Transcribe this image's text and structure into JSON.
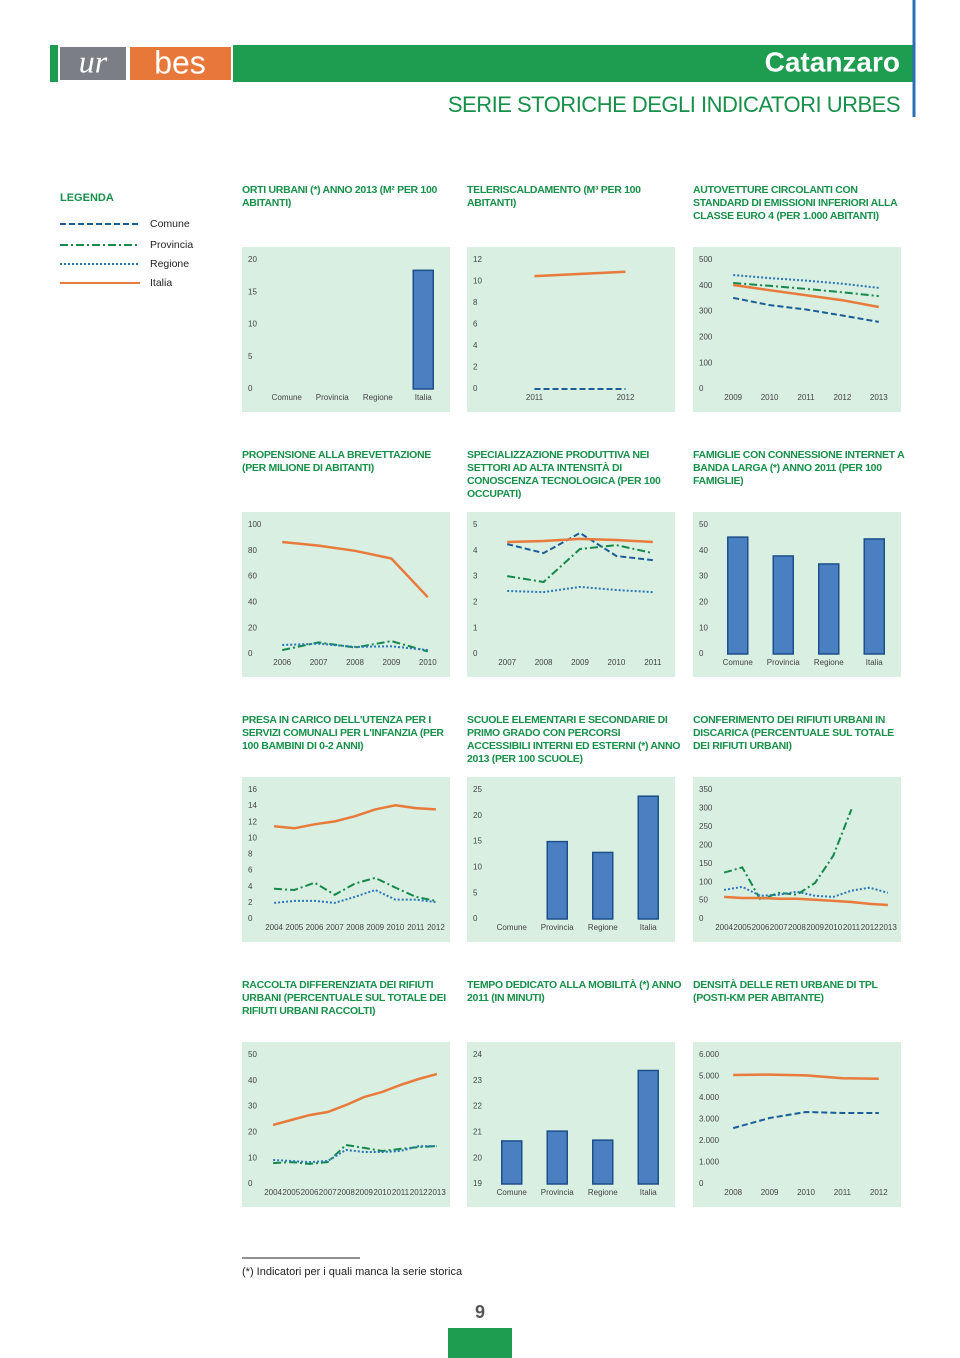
{
  "header": {
    "logo": [
      "ur",
      "bes"
    ],
    "city": "Catanzaro",
    "subtitle": "SERIE STORICHE DEGLI INDICATORI URBES"
  },
  "legend": {
    "title": "LEGENDA",
    "items": [
      {
        "name": "Comune",
        "color": "#1a5d99",
        "dash": "dashed"
      },
      {
        "name": "Provincia",
        "color": "#14894a",
        "dash": "dash-dot"
      },
      {
        "name": "Regione",
        "color": "#2a77b8",
        "dash": "dotted"
      },
      {
        "name": "Italia",
        "color": "#e87a3b",
        "dash": "solid"
      }
    ]
  },
  "chart_data": [
    {
      "type": "bar",
      "title": "ORTI URBANI (*) ANNO 2013 (M² PER 100 ABITANTI)",
      "categories": [
        "Comune",
        "Provincia",
        "Regione",
        "Italia"
      ],
      "values": [
        null,
        null,
        null,
        18.4
      ],
      "color": "#4a80c2",
      "ylim": [
        0,
        20
      ],
      "yticks": [
        0,
        5,
        10,
        15,
        20
      ]
    },
    {
      "type": "line",
      "title": "TELERISCALDAMENTO (M³ PER 100 ABITANTI)",
      "categories": [
        "2011",
        "2012"
      ],
      "series": [
        {
          "name": "Comune",
          "values": [
            0,
            0
          ]
        },
        {
          "name": "Italia",
          "values": [
            10.5,
            10.9
          ]
        }
      ],
      "ylim": [
        0,
        12
      ],
      "yticks": [
        0,
        2,
        4,
        6,
        8,
        10,
        12
      ]
    },
    {
      "type": "line",
      "title": "AUTOVETTURE CIRCOLANTI CON STANDARD DI EMISSIONI INFERIORI ALLA CLASSE EURO 4 (PER 1.000 ABITANTI)",
      "categories": [
        "2009",
        "2010",
        "2011",
        "2012",
        "2013"
      ],
      "series": [
        {
          "name": "Comune",
          "values": [
            353,
            325,
            308,
            285,
            260
          ]
        },
        {
          "name": "Provincia",
          "values": [
            411,
            400,
            388,
            375,
            360
          ]
        },
        {
          "name": "Regione",
          "values": [
            442,
            430,
            420,
            408,
            392
          ]
        },
        {
          "name": "Italia",
          "values": [
            403,
            383,
            363,
            344,
            318
          ]
        }
      ],
      "ylim": [
        0,
        500
      ],
      "yticks": [
        0,
        100,
        200,
        300,
        400,
        500
      ]
    },
    {
      "type": "line",
      "title": "PROPENSIONE ALLA BREVETTAZIONE (PER MILIONE DI ABITANTI)",
      "categories": [
        "2006",
        "2007",
        "2008",
        "2009",
        "2010"
      ],
      "series": [
        {
          "name": "Provincia",
          "values": [
            3,
            9,
            5,
            10,
            2
          ]
        },
        {
          "name": "Regione",
          "values": [
            7,
            8,
            5.5,
            6,
            3
          ]
        },
        {
          "name": "Italia",
          "values": [
            86.8,
            84,
            80,
            74,
            44
          ]
        }
      ],
      "ylim": [
        0,
        100
      ],
      "yticks": [
        0,
        20,
        40,
        60,
        80,
        100
      ]
    },
    {
      "type": "line",
      "title": "SPECIALIZZAZIONE PRODUTTIVA NEI SETTORI AD ALTA INTENSITÀ DI CONOSCENZA TECNOLOGICA (PER 100 OCCUPATI)",
      "categories": [
        "2007",
        "2008",
        "2009",
        "2010",
        "2011"
      ],
      "series": [
        {
          "name": "Comune",
          "values": [
            4.26,
            3.91,
            4.69,
            3.8,
            3.64
          ]
        },
        {
          "name": "Provincia",
          "values": [
            3.02,
            2.79,
            4.07,
            4.22,
            3.91
          ]
        },
        {
          "name": "Regione",
          "values": [
            2.44,
            2.4,
            2.6,
            2.48,
            2.4
          ]
        },
        {
          "name": "Italia",
          "values": [
            4.34,
            4.38,
            4.46,
            4.42,
            4.34
          ]
        }
      ],
      "ylim": [
        0,
        5
      ],
      "yticks": [
        0,
        1,
        2,
        3,
        4,
        5
      ]
    },
    {
      "type": "bar",
      "title": "FAMIGLIE CON CONNESSIONE INTERNET A BANDA LARGA (*) ANNO 2011 (PER 100 FAMIGLIE)",
      "categories": [
        "Comune",
        "Provincia",
        "Regione",
        "Italia"
      ],
      "values": [
        45.3,
        38,
        34.9,
        44.6
      ],
      "color": "#4a80c2",
      "ylim": [
        0,
        50
      ],
      "yticks": [
        0,
        10,
        20,
        30,
        40,
        50
      ]
    },
    {
      "type": "line",
      "title": "PRESA IN CARICO DELL'UTENZA PER I SERVIZI COMUNALI PER L'INFANZIA (PER 100 BAMBINI DI 0-2 ANNI)",
      "categories": [
        "2004",
        "2005",
        "2006",
        "2007",
        "2008",
        "2009",
        "2010",
        "2011",
        "2012"
      ],
      "series": [
        {
          "name": "Provincia",
          "values": [
            3.75,
            3.6,
            4.5,
            3,
            4.4,
            5.1,
            3.9,
            2.75,
            2.25
          ]
        },
        {
          "name": "Regione",
          "values": [
            2,
            2.25,
            2.25,
            2,
            2.75,
            3.6,
            2.4,
            2.4,
            2.1
          ]
        },
        {
          "name": "Italia",
          "values": [
            11.5,
            11.25,
            11.75,
            12.1,
            12.75,
            13.6,
            14.1,
            13.75,
            13.6
          ]
        }
      ],
      "ylim": [
        0,
        16
      ],
      "yticks": [
        0,
        2,
        4,
        6,
        8,
        10,
        12,
        14,
        16
      ]
    },
    {
      "type": "bar",
      "title": "SCUOLE ELEMENTARI E SECONDARIE DI PRIMO GRADO CON PERCORSI ACCESSIBILI INTERNI ED ESTERNI (*) ANNO 2013 (PER 100 SCUOLE)",
      "categories": [
        "Comune",
        "Provincia",
        "Regione",
        "Italia"
      ],
      "values": [
        null,
        15,
        12.9,
        23.8
      ],
      "color": "#4a80c2",
      "ylim": [
        0,
        25
      ],
      "yticks": [
        0,
        5,
        10,
        15,
        20,
        25
      ]
    },
    {
      "type": "line",
      "title": "CONFERIMENTO DEI RIFIUTI URBANI IN DISCARICA (PERCENTUALE SUL TOTALE DEI RIFIUTI URBANI)",
      "categories": [
        "2004",
        "2005",
        "2006",
        "2007",
        "2008",
        "2009",
        "2010",
        "2011",
        "2012",
        "2013"
      ],
      "series": [
        {
          "name": "Provincia",
          "values": [
            126,
            140,
            52,
            71,
            66,
            98,
            172,
            298,
            null,
            null
          ]
        },
        {
          "name": "Regione",
          "values": [
            79,
            87,
            63,
            66,
            74,
            63,
            60,
            77,
            85,
            71
          ]
        },
        {
          "name": "Italia",
          "values": [
            60,
            57,
            57,
            55,
            55,
            52,
            49,
            46,
            41,
            38
          ]
        }
      ],
      "ylim": [
        0,
        350
      ],
      "yticks": [
        0,
        50,
        100,
        150,
        200,
        250,
        300,
        350
      ]
    },
    {
      "type": "line",
      "title": "RACCOLTA DIFFERENZIATA DEI RIFIUTI URBANI (PERCENTUALE SUL TOTALE DEI RIFIUTI URBANI RACCOLTI)",
      "categories": [
        "2004",
        "2005",
        "2006",
        "2007",
        "2008",
        "2009",
        "2010",
        "2011",
        "2012",
        "2013"
      ],
      "series": [
        {
          "name": "Provincia",
          "values": [
            8.1,
            8.5,
            7.8,
            8.5,
            15.1,
            14,
            12.8,
            13.6,
            14.3,
            14.7
          ]
        },
        {
          "name": "Regione",
          "values": [
            9.3,
            8.9,
            8.5,
            8.9,
            13.2,
            12.4,
            12.4,
            12.8,
            14.7,
            14.7
          ]
        },
        {
          "name": "Italia",
          "values": [
            22.9,
            24.8,
            26.7,
            27.9,
            30.6,
            33.7,
            35.7,
            38.4,
            40.7,
            42.6
          ]
        }
      ],
      "ylim": [
        0,
        50
      ],
      "yticks": [
        0,
        10,
        20,
        30,
        40,
        50
      ]
    },
    {
      "type": "bar",
      "title": "TEMPO DEDICATO ALLA MOBILITÀ (*) ANNO 2011 (IN MINUTI)",
      "categories": [
        "Comune",
        "Provincia",
        "Regione",
        "Italia"
      ],
      "values": [
        20.67,
        21.05,
        20.7,
        23.4
      ],
      "color": "#4a80c2",
      "ylim": [
        19,
        24
      ],
      "yticks": [
        19,
        20,
        21,
        22,
        23,
        24
      ]
    },
    {
      "type": "line",
      "title": "DENSITÀ DELLE RETI URBANE DI TPL (POSTI-KM PER ABITANTE)",
      "categories": [
        "2008",
        "2009",
        "2010",
        "2011",
        "2012"
      ],
      "series": [
        {
          "name": "Comune",
          "values": [
            2600,
            3070,
            3350,
            3300,
            3300
          ]
        },
        {
          "name": "Italia",
          "values": [
            5070,
            5090,
            5050,
            4920,
            4900
          ]
        }
      ],
      "ylim": [
        0,
        6000
      ],
      "yticks": [
        0,
        {
          "value": 1000,
          "label": "1.000"
        },
        {
          "value": 2000,
          "label": "2.000"
        },
        {
          "value": 3000,
          "label": "3.000"
        },
        {
          "value": 4000,
          "label": "4.000"
        },
        {
          "value": 5000,
          "label": "5.000"
        },
        {
          "value": 6000,
          "label": "6.000"
        }
      ]
    }
  ],
  "footnote": "(*) Indicatori per i quali manca la serie storica",
  "page_number": "9"
}
